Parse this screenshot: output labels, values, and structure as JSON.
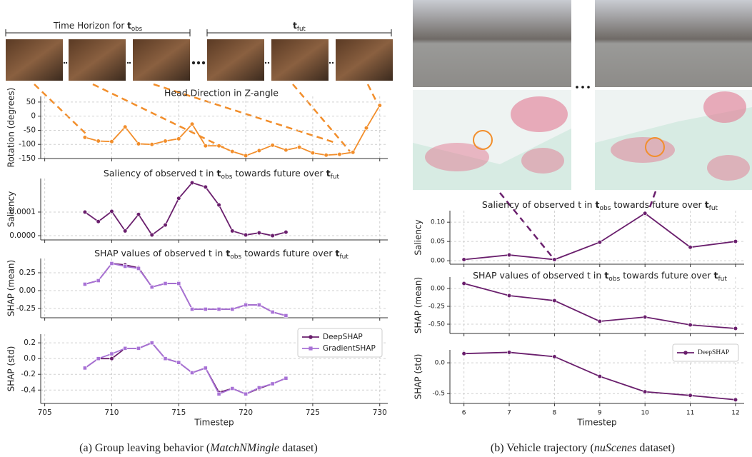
{
  "figure": {
    "obs_header": [
      "Time Horizon for ",
      "t",
      "obs"
    ],
    "fut_header": [
      "t",
      "fut"
    ],
    "captions": [
      [
        "(a) Group leaving behavior (",
        "MatchNMingle",
        " dataset)"
      ],
      [
        "(b) Vehicle trajectory (",
        "nuScenes",
        " dataset)"
      ]
    ]
  },
  "chart_data": [
    {
      "type": "line",
      "title": "Head Direction in Z-angle",
      "ylabel": "Rotation (degrees)",
      "x": [
        708,
        709,
        710,
        711,
        712,
        713,
        714,
        715,
        716,
        717,
        718,
        719,
        720,
        721,
        722,
        723,
        724,
        725,
        726,
        727,
        728,
        729,
        730
      ],
      "values": [
        -75,
        -88,
        -90,
        -38,
        -98,
        -100,
        -88,
        -80,
        -28,
        -105,
        -105,
        -125,
        -140,
        -122,
        -103,
        -120,
        -110,
        -130,
        -138,
        -135,
        -128,
        -42,
        38
      ],
      "color": "#f28e2b",
      "marker": "circle",
      "xlim": [
        704.7,
        730.6
      ],
      "xticks": [
        705,
        710,
        715,
        720,
        725,
        730
      ],
      "ylim": [
        -150,
        70
      ],
      "yticks": [
        -150,
        -100,
        -50,
        0,
        50
      ],
      "grid": true
    },
    {
      "type": "line",
      "title": [
        "Saliency of observed t in ",
        "t",
        "obs",
        " towards future over ",
        "t",
        "fut"
      ],
      "ylabel": "Saliency",
      "x": [
        708,
        709,
        710,
        711,
        712,
        713,
        714,
        715,
        716,
        717,
        718,
        719,
        720,
        721,
        722,
        723
      ],
      "values": [
        0.0001,
        6e-05,
        0.000103,
        2e-05,
        9e-05,
        3e-06,
        4.5e-05,
        0.000158,
        0.000224,
        0.000206,
        0.00013,
        2e-05,
        3e-06,
        1.2e-05,
        0,
        1.5e-05
      ],
      "color": "#6a1f6d",
      "marker": "circle",
      "xlim": [
        704.7,
        730.6
      ],
      "xticks": [
        705,
        710,
        715,
        720,
        725,
        730
      ],
      "ylim": [
        -1.8e-05,
        0.000242
      ],
      "yticks": [
        {
          "value": 0,
          "label": "0.0000"
        },
        {
          "value": 0.0001,
          "label": "0.0001"
        }
      ],
      "grid": true
    },
    {
      "type": "line",
      "title": [
        "SHAP values of observed t in ",
        "t",
        "obs",
        " towards future over ",
        "t",
        "fut"
      ],
      "ylabel": "SHAP (mean)",
      "x": [
        708,
        709,
        710,
        711,
        712,
        713,
        714,
        715,
        716,
        717,
        718,
        719,
        720,
        721,
        722,
        723
      ],
      "series": [
        {
          "name": "DeepSHAP",
          "color": "#6a1f6d",
          "marker": "circle",
          "values": [
            0.09,
            0.14,
            0.38,
            0.36,
            0.32,
            0.05,
            0.1,
            0.1,
            -0.26,
            -0.26,
            -0.26,
            -0.26,
            -0.2,
            -0.2,
            -0.3,
            -0.35
          ]
        },
        {
          "name": "GradientSHAP",
          "color": "#a872d6",
          "marker": "square",
          "values": [
            0.09,
            0.14,
            0.38,
            0.34,
            0.31,
            0.05,
            0.1,
            0.1,
            -0.26,
            -0.26,
            -0.26,
            -0.26,
            -0.2,
            -0.2,
            -0.3,
            -0.35
          ]
        }
      ],
      "xlim": [
        704.7,
        730.6
      ],
      "xticks": [
        705,
        710,
        715,
        720,
        725,
        730
      ],
      "ylim": [
        -0.38,
        0.45
      ],
      "yticks": [
        -0.25,
        {
          "value": 0,
          "label": "0.00"
        },
        0.25
      ],
      "grid": true
    },
    {
      "type": "line",
      "ylabel": "SHAP (std)",
      "xlabel": "Timestep",
      "x": [
        708,
        709,
        710,
        711,
        712,
        713,
        714,
        715,
        716,
        717,
        718,
        719,
        720,
        721,
        722,
        723
      ],
      "series": [
        {
          "name": "DeepSHAP",
          "color": "#6a1f6d",
          "marker": "circle",
          "values": [
            -0.12,
            0,
            0,
            0.13,
            0.13,
            0.2,
            0,
            -0.05,
            -0.18,
            -0.12,
            -0.43,
            -0.38,
            -0.45,
            -0.38,
            -0.32,
            -0.25
          ]
        },
        {
          "name": "GradientSHAP",
          "color": "#a872d6",
          "marker": "square",
          "values": [
            -0.12,
            0,
            0.06,
            0.13,
            0.13,
            0.2,
            0,
            -0.05,
            -0.18,
            -0.12,
            -0.45,
            -0.38,
            -0.45,
            -0.37,
            -0.32,
            -0.25
          ]
        }
      ],
      "xlim": [
        704.7,
        730.6
      ],
      "xticks": [
        705,
        710,
        715,
        720,
        725,
        730
      ],
      "ylim": [
        -0.57,
        0.31
      ],
      "yticks": [
        -0.4,
        -0.2,
        {
          "value": 0,
          "label": "0.0"
        },
        0.2
      ],
      "grid": true,
      "legend": "upper right"
    },
    {
      "type": "line",
      "title": [
        "Saliency of observed t in ",
        "t",
        "obs",
        " towards future over ",
        "t",
        "fut"
      ],
      "ylabel": "Saliency",
      "x": [
        6,
        7,
        8,
        9,
        10,
        11,
        12
      ],
      "values": [
        0.003,
        0.015,
        0.003,
        0.048,
        0.123,
        0.035,
        0.05
      ],
      "color": "#6a1f6d",
      "marker": "circle",
      "xlim": [
        5.69,
        12.19
      ],
      "xticks": [
        6,
        7,
        8,
        9,
        10,
        11,
        12
      ],
      "ylim": [
        -0.009,
        0.13
      ],
      "yticks": [
        {
          "value": 0,
          "label": "0.00"
        },
        0.05,
        {
          "value": 0.1,
          "label": "0.10"
        }
      ],
      "grid": true
    },
    {
      "type": "line",
      "title": [
        "SHAP values of observed t in ",
        "t",
        "obs",
        " towards future over ",
        "t",
        "fut"
      ],
      "ylabel": "SHAP (mean)",
      "x": [
        6,
        7,
        8,
        9,
        10,
        11,
        12
      ],
      "values": [
        0.07,
        -0.1,
        -0.17,
        -0.46,
        -0.4,
        -0.51,
        -0.56
      ],
      "color": "#6a1f6d",
      "marker": "circle",
      "xlim": [
        5.69,
        12.19
      ],
      "xticks": [
        6,
        7,
        8,
        9,
        10,
        11,
        12
      ],
      "ylim": [
        -0.63,
        0.16
      ],
      "yticks": [
        {
          "value": -0.5,
          "label": "-0.50"
        },
        -0.25,
        {
          "value": 0,
          "label": "0.00"
        }
      ],
      "grid": true
    },
    {
      "type": "line",
      "ylabel": "SHAP (std)",
      "xlabel": "Timestep",
      "x": [
        6,
        7,
        8,
        9,
        10,
        11,
        12
      ],
      "series": [
        {
          "name": "DeepSHAP",
          "color": "#6a1f6d",
          "marker": "circle",
          "values": [
            0.15,
            0.17,
            0.1,
            -0.22,
            -0.47,
            -0.53,
            -0.6
          ]
        }
      ],
      "xlim": [
        5.69,
        12.19
      ],
      "xticks": [
        6,
        7,
        8,
        9,
        10,
        11,
        12
      ],
      "ylim": [
        -0.66,
        0.21
      ],
      "yticks": [
        -0.5,
        {
          "value": 0,
          "label": "0.0"
        }
      ],
      "grid": true,
      "legend": "upper right"
    }
  ]
}
